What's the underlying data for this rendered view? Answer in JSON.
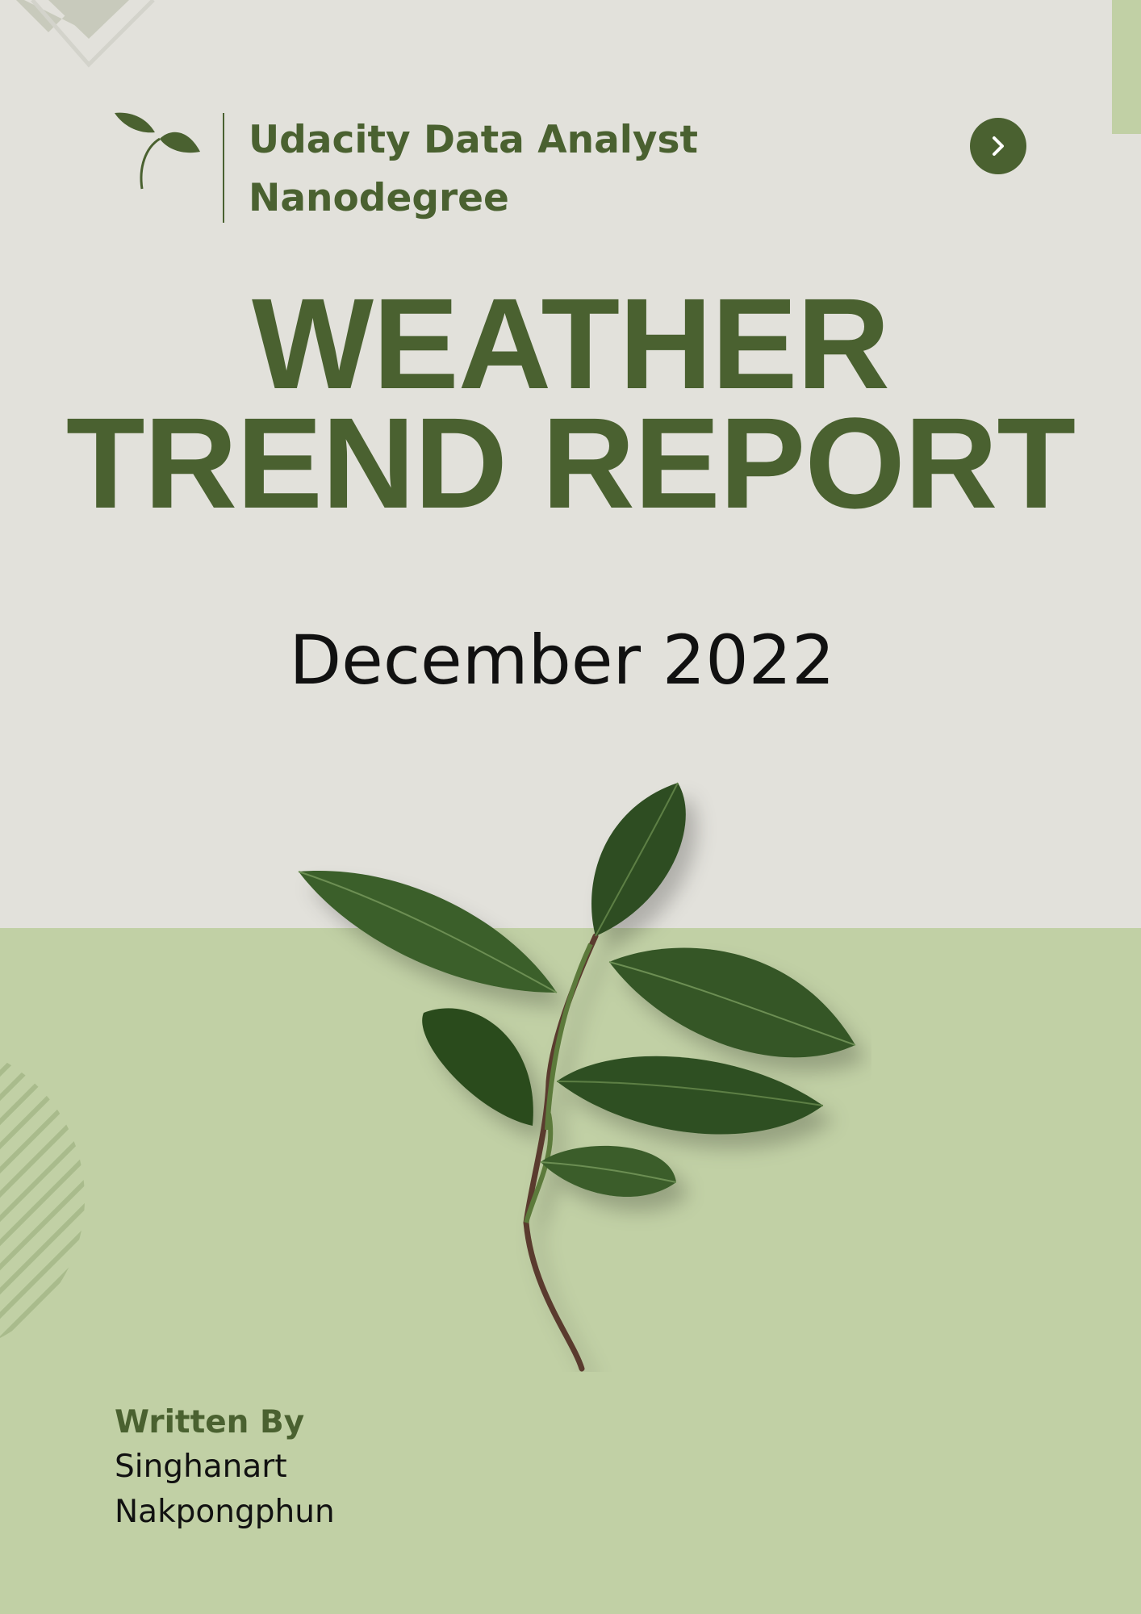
{
  "header": {
    "org_name": "Udacity Data Analyst Nanodegree",
    "next_icon": "chevron-right-icon",
    "logo_icon": "sprout-icon"
  },
  "title": {
    "line1": "WEATHER",
    "line2": "TREND REPORT"
  },
  "date": "December 2022",
  "author": {
    "label": "Written By",
    "name": "Singhanart Nakpongphun"
  },
  "colors": {
    "background": "#e2e1db",
    "band": "#c1d0a5",
    "accent": "#4a6130",
    "leaf": "#2f4e22"
  }
}
